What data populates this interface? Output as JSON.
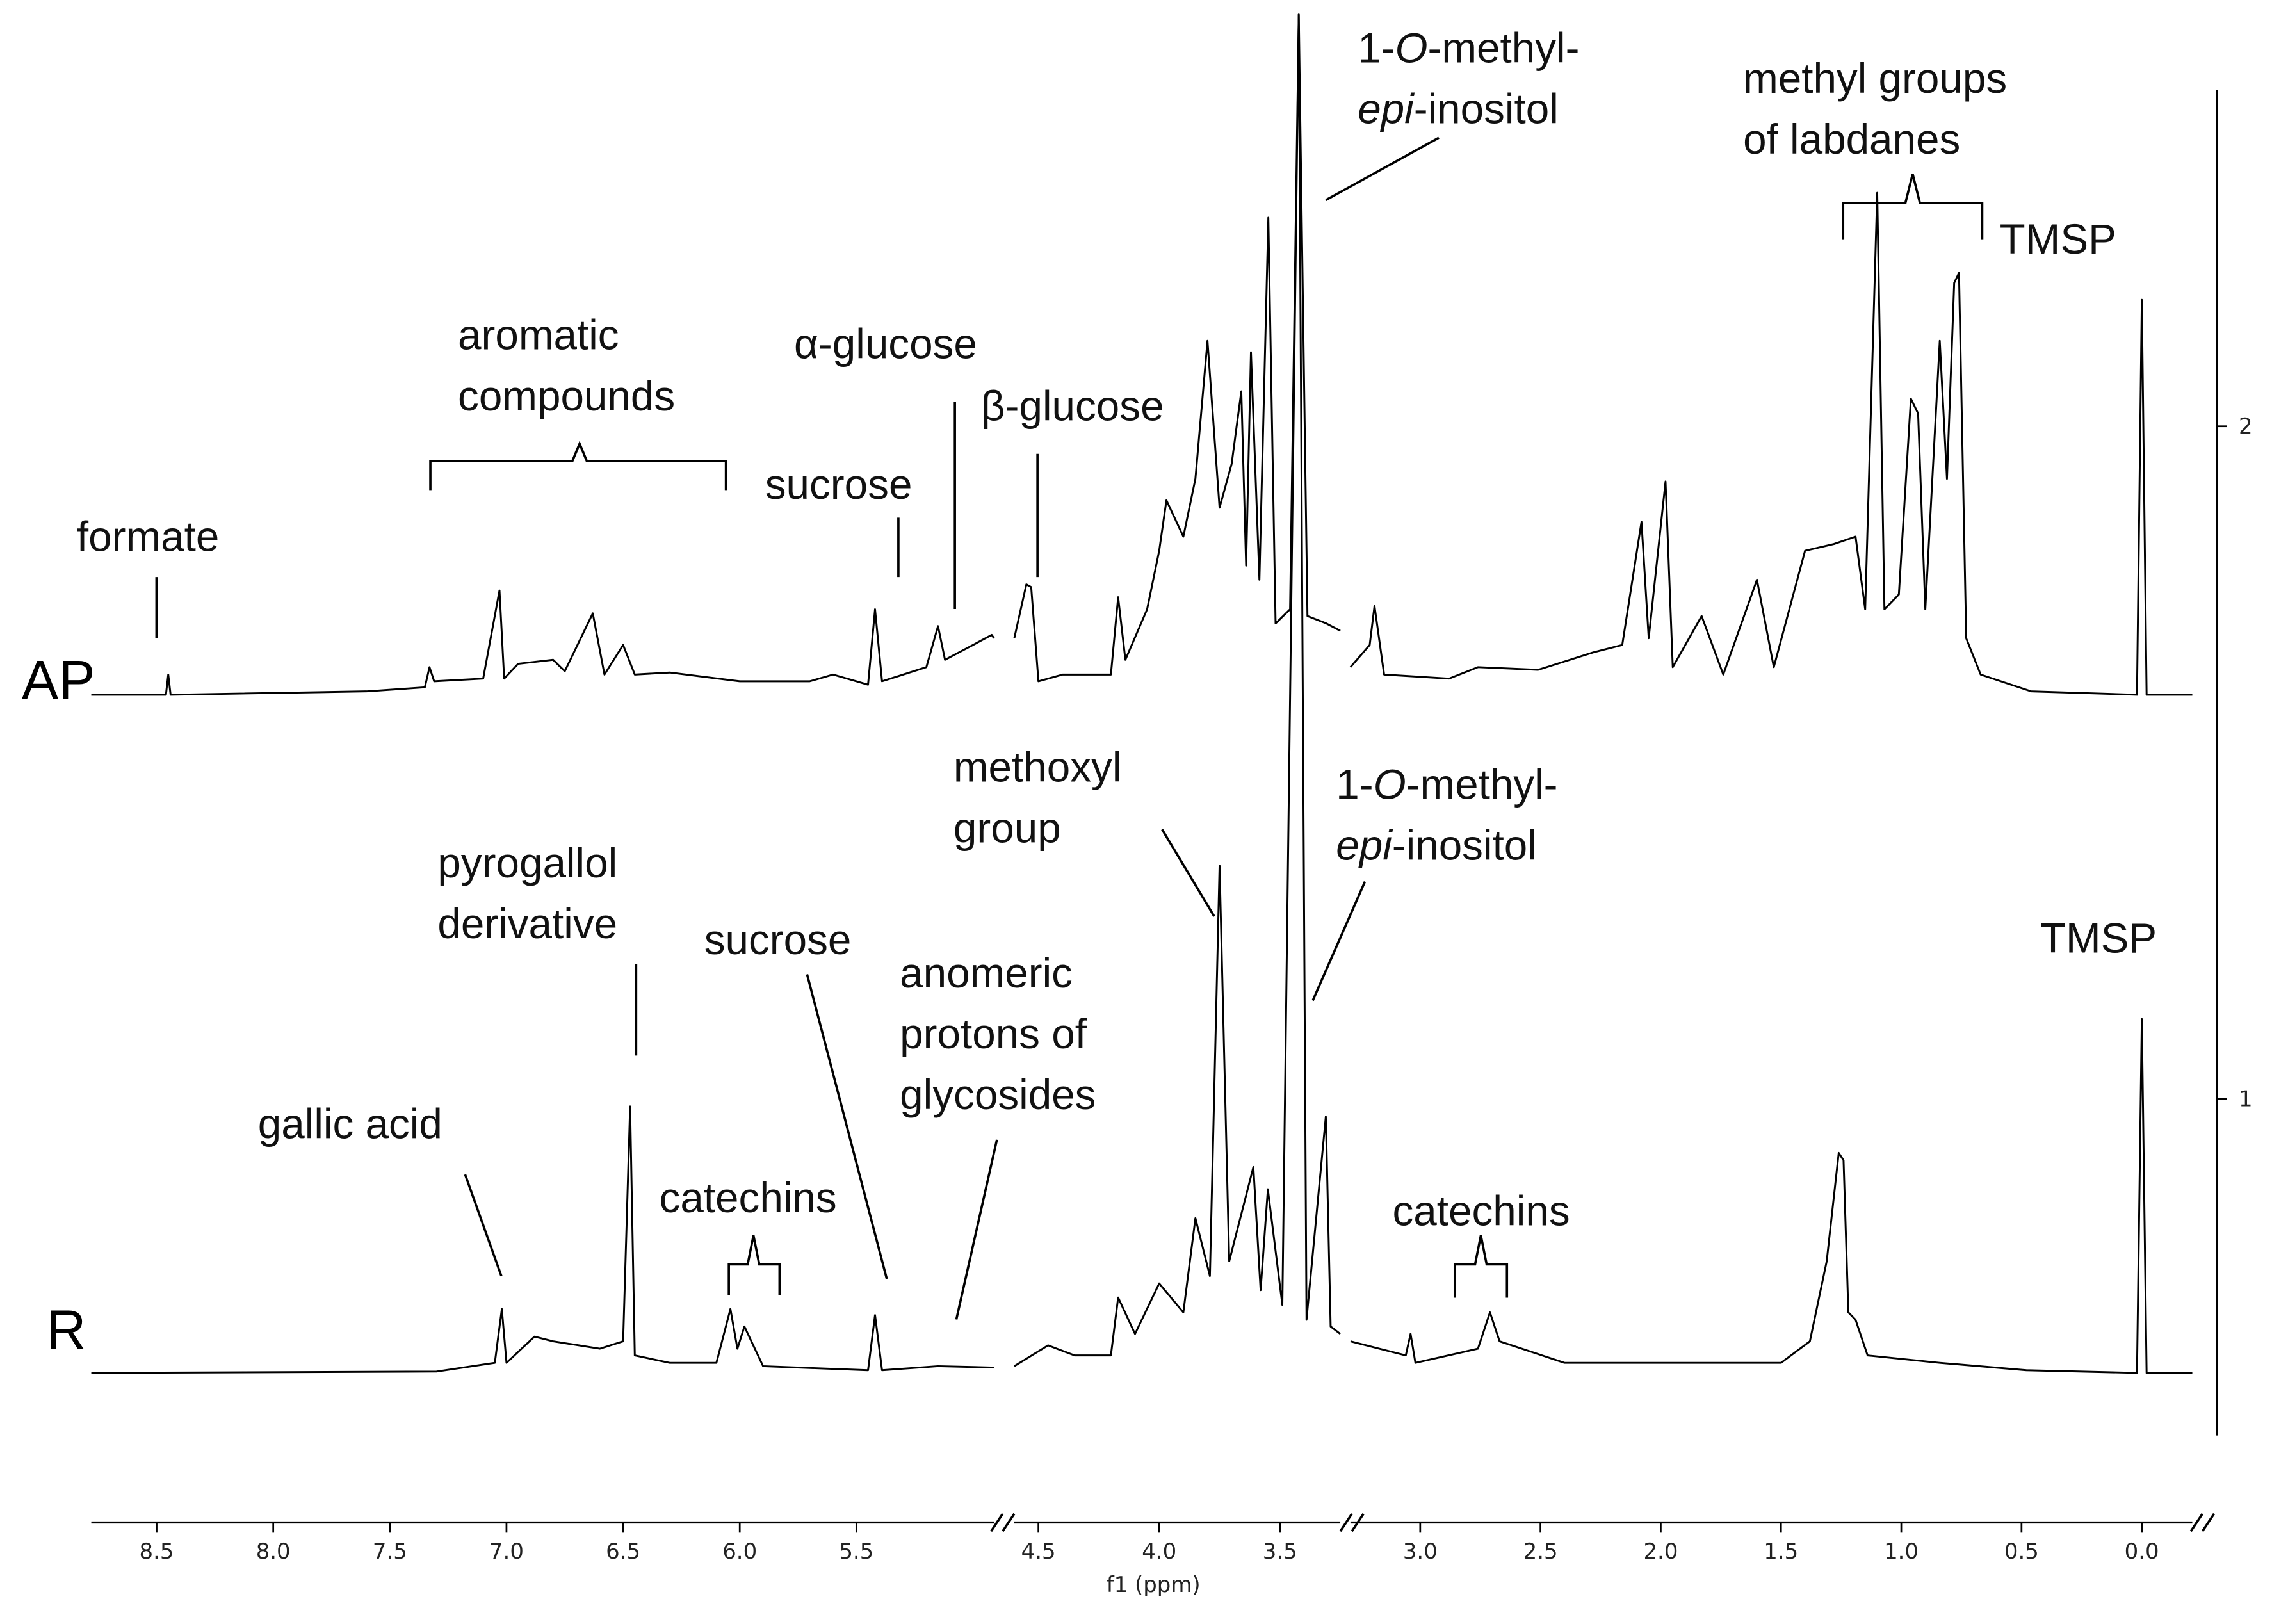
{
  "chart_data": {
    "type": "line",
    "xlabel": "f1 (ppm)",
    "xlim": [
      [
        8.78,
        4.91
      ],
      [
        4.6,
        3.25
      ],
      [
        3.29,
        -0.21
      ]
    ],
    "xticks": [
      [
        8.5,
        {
          "value": 8,
          "label": "8.0"
        },
        7.5,
        {
          "value": 7,
          "label": "7.0"
        },
        6.5,
        {
          "value": 6,
          "label": "6.0"
        },
        5.5
      ],
      [
        4.5,
        {
          "value": 4,
          "label": "4.0"
        },
        3.5
      ],
      [
        {
          "value": 3,
          "label": "3.0"
        },
        2.5,
        {
          "value": 2,
          "label": "2.0"
        },
        1.5,
        {
          "value": 1,
          "label": "1.0"
        },
        0.5,
        {
          "value": 0,
          "label": "0.0"
        }
      ]
    ],
    "ylim": [
      0.5,
      2.5
    ],
    "yticks": [
      1,
      2
    ],
    "color": "#000000",
    "series": [
      {
        "name": "AP",
        "x": [
          8.78,
          8.46,
          8.45,
          8.44,
          7.6,
          7.35,
          7.33,
          7.31,
          7.1,
          7.03,
          7.01,
          6.95,
          6.8,
          6.75,
          6.63,
          6.58,
          6.5,
          6.45,
          6.3,
          6.0,
          5.7,
          5.6,
          5.45,
          5.42,
          5.39,
          5.2,
          5.15,
          5.12,
          5.0,
          4.92,
          4.91,
          null,
          4.6,
          4.55,
          4.53,
          4.5,
          4.4,
          4.2,
          4.17,
          4.14,
          4.05,
          4.0,
          3.97,
          3.9,
          3.85,
          3.8,
          3.75,
          3.7,
          3.66,
          3.64,
          3.62,
          3.585,
          3.548,
          3.518,
          3.458,
          3.422,
          3.386,
          3.308,
          3.25,
          null,
          3.29,
          3.21,
          3.19,
          3.15,
          2.88,
          2.76,
          2.51,
          2.28,
          2.16,
          2.08,
          2.05,
          1.98,
          1.95,
          1.83,
          1.74,
          1.6,
          1.53,
          1.4,
          1.28,
          1.19,
          1.15,
          1.1,
          1.07,
          1.01,
          0.96,
          0.93,
          0.9,
          0.84,
          0.81,
          0.78,
          0.76,
          0.73,
          0.67,
          0.46,
          0.02,
          0.0,
          -0.02,
          -0.21
        ],
        "values": [
          1.601,
          1.601,
          1.631,
          1.601,
          1.606,
          1.612,
          1.642,
          1.621,
          1.625,
          1.756,
          1.625,
          1.647,
          1.653,
          1.636,
          1.722,
          1.631,
          1.675,
          1.631,
          1.634,
          1.621,
          1.621,
          1.631,
          1.616,
          1.728,
          1.621,
          1.642,
          1.703,
          1.653,
          1.675,
          1.69,
          1.685,
          null,
          1.685,
          1.765,
          1.761,
          1.621,
          1.631,
          1.631,
          1.746,
          1.653,
          1.728,
          1.815,
          1.89,
          1.836,
          1.922,
          2.127,
          1.879,
          1.944,
          2.052,
          1.793,
          2.11,
          1.772,
          2.31,
          1.707,
          1.728,
          2.612,
          1.718,
          1.707,
          1.696,
          null,
          1.642,
          1.675,
          1.733,
          1.631,
          1.625,
          1.642,
          1.638,
          1.664,
          1.675,
          1.858,
          1.685,
          1.918,
          1.642,
          1.718,
          1.631,
          1.772,
          1.642,
          1.815,
          1.825,
          1.836,
          1.728,
          2.347,
          1.728,
          1.75,
          2.041,
          2.019,
          1.728,
          2.127,
          1.922,
          2.213,
          2.228,
          1.685,
          1.631,
          1.606,
          1.601,
          2.188,
          1.601,
          1.601
        ]
      },
      {
        "name": "R",
        "x": [
          8.78,
          7.3,
          7.05,
          7.02,
          7.0,
          6.88,
          6.8,
          6.6,
          6.5,
          6.47,
          6.45,
          6.3,
          6.1,
          6.04,
          6.01,
          5.98,
          5.9,
          5.45,
          5.42,
          5.39,
          5.15,
          4.91,
          null,
          4.6,
          4.46,
          4.35,
          4.2,
          4.17,
          4.1,
          4.0,
          3.9,
          3.85,
          3.79,
          3.75,
          3.71,
          3.61,
          3.58,
          3.55,
          3.49,
          3.422,
          3.39,
          3.31,
          3.29,
          3.25,
          null,
          3.29,
          3.06,
          3.04,
          3.02,
          2.76,
          2.71,
          2.67,
          2.4,
          1.92,
          1.5,
          1.38,
          1.31,
          1.26,
          1.24,
          1.22,
          1.19,
          1.14,
          0.84,
          0.48,
          0.02,
          0.0,
          -0.02,
          -0.21
        ],
        "values": [
          0.593,
          0.595,
          0.608,
          0.688,
          0.608,
          0.647,
          0.64,
          0.629,
          0.64,
          0.989,
          0.619,
          0.608,
          0.608,
          0.688,
          0.629,
          0.662,
          0.603,
          0.597,
          0.679,
          0.597,
          0.603,
          0.601,
          null,
          0.603,
          0.634,
          0.619,
          0.619,
          0.705,
          0.651,
          0.726,
          0.683,
          0.823,
          0.737,
          1.347,
          0.759,
          0.899,
          0.716,
          0.866,
          0.694,
          2.612,
          0.672,
          0.974,
          0.662,
          0.651,
          null,
          0.64,
          0.619,
          0.651,
          0.608,
          0.629,
          0.683,
          0.64,
          0.608,
          0.608,
          0.608,
          0.64,
          0.759,
          0.92,
          0.909,
          0.683,
          0.672,
          0.619,
          0.608,
          0.597,
          0.593,
          1.119,
          0.593,
          0.593
        ]
      }
    ],
    "annotations": [
      {
        "lines": [
          [
            "formate"
          ]
        ]
      },
      {
        "lines": [
          [
            "aromatic"
          ],
          [
            "compounds"
          ]
        ]
      },
      {
        "lines": [
          [
            "α-glucose"
          ]
        ]
      },
      {
        "lines": [
          [
            "β-glucose"
          ]
        ]
      },
      {
        "lines": [
          [
            "sucrose"
          ]
        ]
      },
      {
        "lines": [
          [
            "1-",
            {
              "italic": "O"
            },
            "-methyl-"
          ],
          [
            {
              "italic": "epi"
            },
            "-inositol"
          ]
        ]
      },
      {
        "lines": [
          [
            "methyl groups"
          ],
          [
            "of labdanes"
          ]
        ]
      },
      {
        "lines": [
          [
            "TMSP"
          ]
        ]
      },
      {
        "lines": [
          [
            "methoxyl"
          ],
          [
            "group"
          ]
        ]
      },
      {
        "lines": [
          [
            "1-",
            {
              "italic": "O"
            },
            "-methyl-"
          ],
          [
            {
              "italic": "epi"
            },
            "-inositol"
          ]
        ]
      },
      {
        "lines": [
          [
            "pyrogallol"
          ],
          [
            "derivative"
          ]
        ]
      },
      {
        "lines": [
          [
            "sucrose"
          ]
        ]
      },
      {
        "lines": [
          [
            "anomeric"
          ],
          [
            "protons of"
          ],
          [
            "glycosides"
          ]
        ]
      },
      {
        "lines": [
          [
            "gallic acid"
          ]
        ]
      },
      {
        "lines": [
          [
            "catechins"
          ]
        ]
      },
      {
        "lines": [
          [
            "catechins"
          ]
        ]
      },
      {
        "lines": [
          [
            "TMSP"
          ]
        ]
      }
    ]
  }
}
